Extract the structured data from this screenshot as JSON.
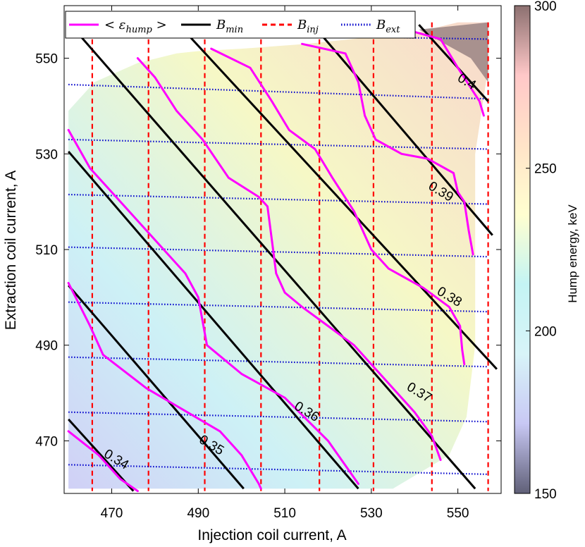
{
  "chart_data": {
    "type": "line",
    "xlabel": "Injection coil current, A",
    "ylabel": "Extraction coil current, A",
    "xlim": [
      459,
      560
    ],
    "ylim": [
      459,
      561
    ],
    "xticks": [
      470,
      490,
      510,
      530,
      550
    ],
    "yticks": [
      470,
      490,
      510,
      530,
      550
    ],
    "grid": false,
    "legend_position": "top-left",
    "legend": [
      {
        "key": "hump",
        "base": "< ε",
        "sub": "hump",
        "tail": " >",
        "color": "#ff00ff",
        "style": "solid"
      },
      {
        "key": "bmin",
        "base": "B",
        "sub": "min",
        "tail": "",
        "color": "#000000",
        "style": "solid"
      },
      {
        "key": "binj",
        "base": "B",
        "sub": "inj",
        "tail": "",
        "color": "#ff0000",
        "style": "dashed"
      },
      {
        "key": "bext",
        "base": "B",
        "sub": "ext",
        "tail": "",
        "color": "#0000cc",
        "style": "dotted"
      }
    ],
    "colorbar": {
      "label": "Hump energy, keV",
      "range": [
        150,
        300
      ],
      "ticks": [
        150,
        200,
        250,
        300
      ],
      "colors": [
        "#606078",
        "#c8c8f4",
        "#d8f4f8",
        "#c4f4f4",
        "#ffffd0",
        "#ffe4c8",
        "#ffc8c8",
        "#8c7070"
      ]
    },
    "bmin_lines": [
      {
        "label": "0.34",
        "points": [
          [
            460,
            474.5
          ],
          [
            475,
            459.5
          ]
        ]
      },
      {
        "label": "0.35",
        "points": [
          [
            460,
            502.5
          ],
          [
            500.5,
            460
          ]
        ]
      },
      {
        "label": "0.36",
        "points": [
          [
            460,
            530.5
          ],
          [
            527,
            460
          ]
        ]
      },
      {
        "label": "0.37",
        "points": [
          [
            460,
            557.5
          ],
          [
            554,
            460
          ]
        ]
      },
      {
        "label": "0.38",
        "points": [
          [
            485,
            557.5
          ],
          [
            559,
            485
          ]
        ]
      },
      {
        "label": "0.39",
        "points": [
          [
            516,
            557.5
          ],
          [
            558,
            513
          ]
        ]
      },
      {
        "label": "0.4",
        "points": [
          [
            541,
            557
          ],
          [
            557,
            541
          ]
        ]
      }
    ],
    "binj_x": [
      465.5,
      478.5,
      491.5,
      504.5,
      518,
      530.5,
      544,
      557
    ],
    "bext_y": [
      [
        555.5,
        554
      ],
      [
        544.5,
        541.5
      ],
      [
        533,
        531
      ],
      [
        521.5,
        519.5
      ],
      [
        510.5,
        508.5
      ],
      [
        499,
        497
      ],
      [
        487.5,
        485.5
      ],
      [
        476,
        474
      ],
      [
        465,
        463
      ]
    ],
    "series": [
      {
        "name": "0.34",
        "points": [
          [
            460,
            472
          ],
          [
            467,
            467
          ],
          [
            472,
            462
          ],
          [
            476,
            459.5
          ]
        ]
      },
      {
        "name": "0.35",
        "points": [
          [
            460,
            503
          ],
          [
            465,
            494
          ],
          [
            468,
            488
          ],
          [
            478,
            481
          ],
          [
            495,
            472
          ],
          [
            500,
            467
          ],
          [
            504,
            461
          ],
          [
            504.5,
            460
          ]
        ]
      },
      {
        "name": "0.36",
        "points": [
          [
            460,
            535
          ],
          [
            465,
            527
          ],
          [
            473,
            519
          ],
          [
            480,
            512
          ],
          [
            487,
            505
          ],
          [
            490,
            500
          ],
          [
            492,
            490
          ],
          [
            500,
            484
          ],
          [
            510,
            479
          ],
          [
            520,
            470
          ],
          [
            527,
            461
          ]
        ]
      },
      {
        "name": "0.37",
        "points": [
          [
            476,
            550
          ],
          [
            480,
            546
          ],
          [
            485,
            539
          ],
          [
            491,
            533
          ],
          [
            497,
            525
          ],
          [
            504,
            521
          ],
          [
            506,
            519
          ],
          [
            507,
            512
          ],
          [
            508,
            505
          ],
          [
            510,
            501
          ],
          [
            514,
            498
          ],
          [
            520,
            494
          ],
          [
            526,
            490
          ],
          [
            534,
            482
          ],
          [
            540,
            476
          ],
          [
            544,
            471
          ],
          [
            546,
            466
          ]
        ]
      },
      {
        "name": "0.38",
        "points": [
          [
            493,
            552
          ],
          [
            502,
            548
          ],
          [
            507,
            541
          ],
          [
            511,
            535
          ],
          [
            517,
            531
          ],
          [
            521,
            525
          ],
          [
            526,
            518
          ],
          [
            530,
            510
          ],
          [
            534,
            506
          ],
          [
            542,
            502
          ],
          [
            548,
            498
          ],
          [
            550.5,
            494
          ],
          [
            551,
            489
          ],
          [
            551.5,
            486
          ]
        ]
      },
      {
        "name": "0.39",
        "points": [
          [
            514,
            553
          ],
          [
            524,
            551
          ],
          [
            527,
            545
          ],
          [
            528.5,
            538
          ],
          [
            531,
            533
          ],
          [
            537,
            530
          ],
          [
            543,
            529
          ],
          [
            549,
            526
          ],
          [
            550,
            522
          ],
          [
            551.5,
            520
          ],
          [
            552.5,
            514
          ],
          [
            553.5,
            509
          ]
        ]
      },
      {
        "name": "0.4",
        "points": [
          [
            540,
            555.5
          ],
          [
            546,
            554
          ],
          [
            550,
            548
          ],
          [
            555,
            541
          ],
          [
            556,
            538
          ]
        ]
      }
    ],
    "contour_labels": [
      {
        "text": "0.34",
        "x": 471,
        "y": 466,
        "angle": 31
      },
      {
        "text": "0.35",
        "x": 493,
        "y": 469,
        "angle": 31
      },
      {
        "text": "0.36",
        "x": 515,
        "y": 476,
        "angle": 31
      },
      {
        "text": "0.37",
        "x": 541,
        "y": 480,
        "angle": 31
      },
      {
        "text": "0.38",
        "x": 548,
        "y": 500,
        "angle": 31
      },
      {
        "text": "0.39",
        "x": 546,
        "y": 522,
        "angle": 31
      },
      {
        "text": "0.4",
        "x": 552,
        "y": 545,
        "angle": 31
      }
    ]
  }
}
